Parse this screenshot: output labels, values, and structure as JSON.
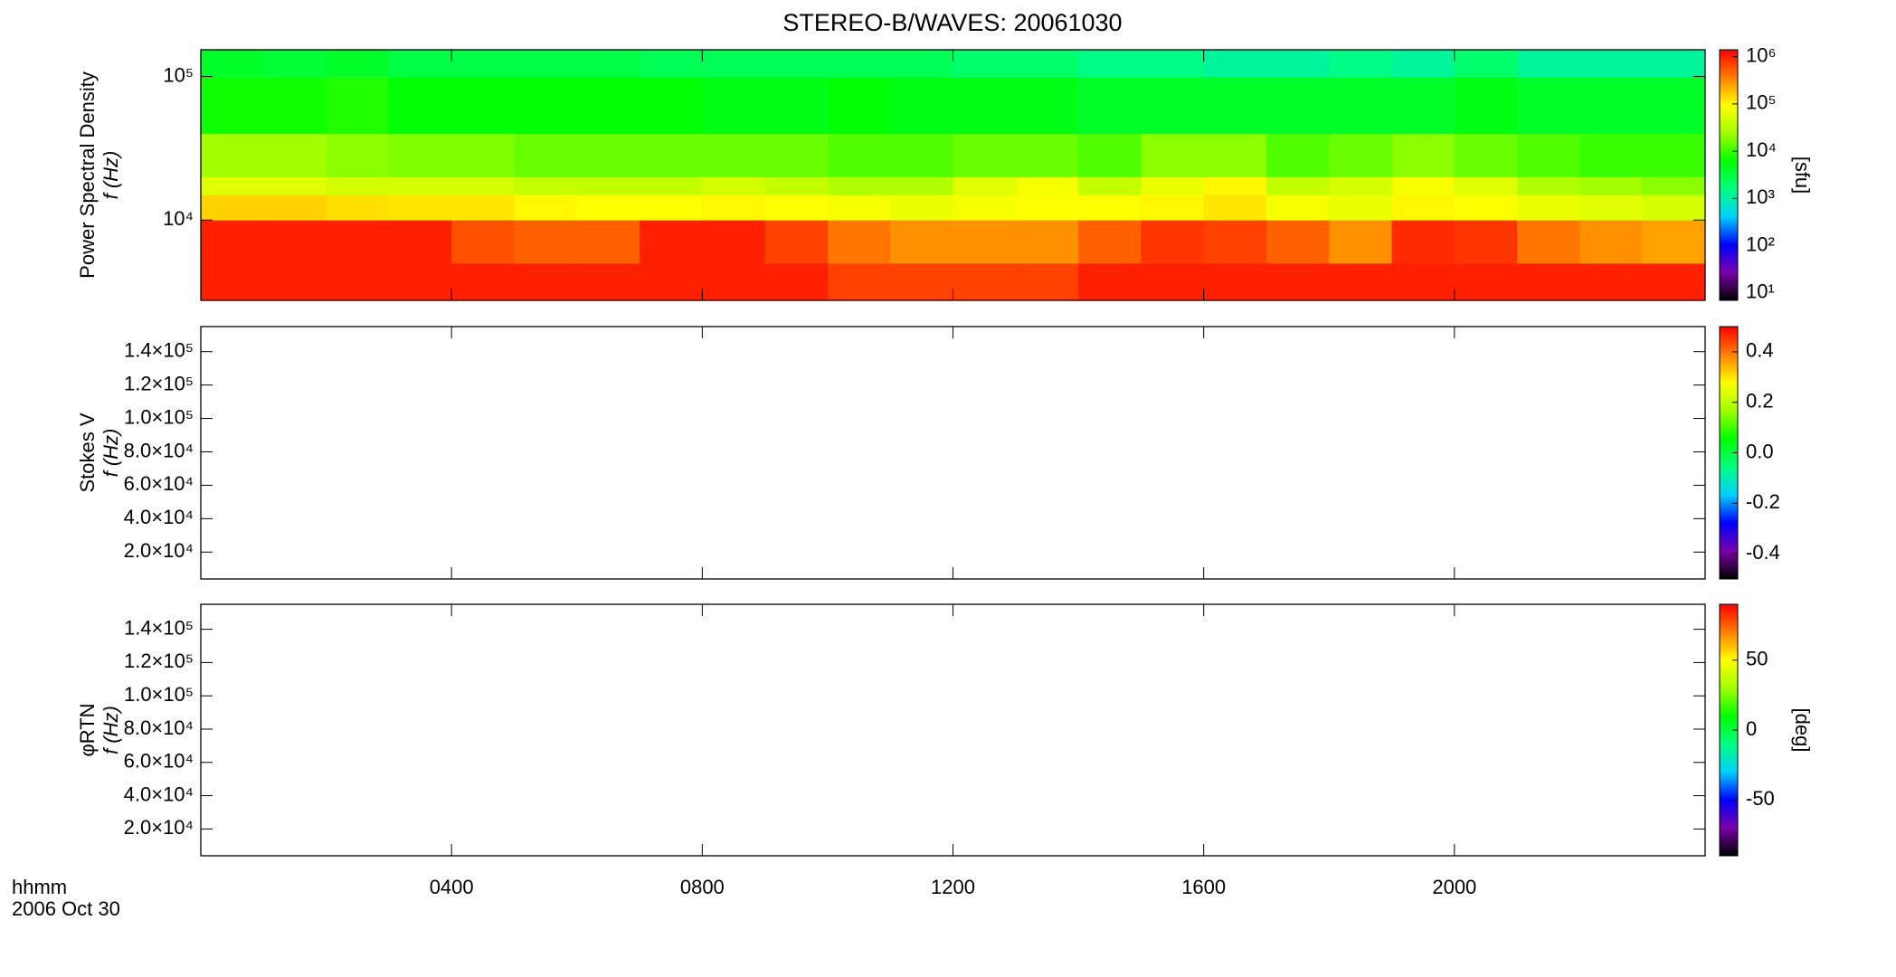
{
  "colormap": [
    "#000000",
    "#7a00a8",
    "#0000ff",
    "#00d0ff",
    "#00ff80",
    "#00ff00",
    "#a0ff00",
    "#ffff00",
    "#ff8000",
    "#ff0000"
  ],
  "chart_data": [
    {
      "type": "heatmap",
      "title": "STEREO-B/WAVES: 20061030",
      "ylabel": [
        "Power Spectral Density",
        "f (Hz)"
      ],
      "xlim": [
        0,
        24
      ],
      "ylim": [
        2760,
        153600
      ],
      "ylog": true,
      "yticks": [
        {
          "value": 10000,
          "label": "10⁴"
        },
        {
          "value": 100000,
          "label": "10⁵"
        }
      ],
      "clim": [
        7,
        1400000
      ],
      "clog": true,
      "ctitle": "[sfu]",
      "cticks": [
        {
          "value": 10,
          "label": "10¹"
        },
        {
          "value": 100,
          "label": "10²"
        },
        {
          "value": 1000,
          "label": "10³"
        },
        {
          "value": 10000,
          "label": "10⁴"
        },
        {
          "value": 100000,
          "label": "10⁵"
        },
        {
          "value": 1000000,
          "label": "10⁶"
        }
      ],
      "x_edges": [
        0,
        1,
        2,
        3,
        4,
        5,
        6,
        7,
        8,
        9,
        10,
        11,
        12,
        13,
        14,
        15,
        16,
        17,
        18,
        19,
        20,
        21,
        22,
        23,
        24
      ],
      "y_edges": [
        2760,
        5000,
        10000,
        15000,
        20000,
        40000,
        100000,
        153600
      ],
      "z": [
        [
          1000000,
          1000000,
          1000000,
          1000000,
          1000000,
          1000000,
          1000000,
          1000000,
          1000000,
          1000000,
          700000,
          700000,
          700000,
          700000,
          1000000,
          1000000,
          1000000,
          1000000,
          1000000,
          1000000,
          1000000,
          1000000,
          1000000,
          1000000
        ],
        [
          1000000,
          1000000,
          1000000,
          1000000,
          600000,
          500000,
          500000,
          1000000,
          1000000,
          700000,
          400000,
          300000,
          300000,
          300000,
          500000,
          800000,
          700000,
          500000,
          300000,
          900000,
          800000,
          400000,
          300000,
          250000
        ],
        [
          150000,
          150000,
          130000,
          120000,
          120000,
          100000,
          90000,
          90000,
          100000,
          90000,
          80000,
          70000,
          80000,
          90000,
          90000,
          100000,
          120000,
          80000,
          70000,
          100000,
          90000,
          70000,
          60000,
          50000
        ],
        [
          60000,
          60000,
          50000,
          50000,
          50000,
          40000,
          40000,
          40000,
          50000,
          40000,
          30000,
          30000,
          60000,
          80000,
          40000,
          70000,
          100000,
          40000,
          50000,
          80000,
          60000,
          30000,
          25000,
          20000
        ],
        [
          25000,
          25000,
          20000,
          18000,
          18000,
          15000,
          15000,
          15000,
          15000,
          15000,
          12000,
          12000,
          15000,
          15000,
          12000,
          20000,
          20000,
          12000,
          15000,
          20000,
          15000,
          12000,
          10000,
          10000
        ],
        [
          7000,
          7000,
          8000,
          6000,
          6000,
          6000,
          6000,
          6000,
          5000,
          5000,
          6000,
          5000,
          5000,
          5000,
          4000,
          4000,
          4000,
          4000,
          4000,
          4000,
          5000,
          4000,
          4000,
          4000
        ],
        [
          4000,
          3500,
          4000,
          3000,
          3000,
          3000,
          3000,
          2500,
          2500,
          2500,
          2500,
          2500,
          2000,
          2000,
          1500,
          1500,
          1200,
          1200,
          1500,
          1200,
          2000,
          1200,
          1200,
          1200
        ]
      ]
    },
    {
      "type": "heatmap",
      "ylabel": [
        "Stokes V",
        "f (Hz)"
      ],
      "xlim": [
        0,
        24
      ],
      "ylim": [
        3900,
        155000
      ],
      "yticks": [
        {
          "value": 20000,
          "label": "2.0×10⁴"
        },
        {
          "value": 40000,
          "label": "4.0×10⁴"
        },
        {
          "value": 60000,
          "label": "6.0×10⁴"
        },
        {
          "value": 80000,
          "label": "8.0×10⁴"
        },
        {
          "value": 100000,
          "label": "1.0×10⁵"
        },
        {
          "value": 120000,
          "label": "1.2×10⁵"
        },
        {
          "value": 140000,
          "label": "1.4×10⁵"
        }
      ],
      "clim": [
        -0.5,
        0.5
      ],
      "cticks": [
        -0.4,
        -0.2,
        {
          "value": 0,
          "label": "0.0"
        },
        0.2,
        0.4
      ]
    },
    {
      "type": "heatmap",
      "ylabel": [
        "φRTN",
        "f (Hz)"
      ],
      "xlim": [
        0,
        24
      ],
      "ylim": [
        3900,
        155000
      ],
      "yticks": [
        {
          "value": 20000,
          "label": "2.0×10⁴"
        },
        {
          "value": 40000,
          "label": "4.0×10⁴"
        },
        {
          "value": 60000,
          "label": "6.0×10⁴"
        },
        {
          "value": 80000,
          "label": "8.0×10⁴"
        },
        {
          "value": 100000,
          "label": "1.0×10⁵"
        },
        {
          "value": 120000,
          "label": "1.2×10⁵"
        },
        {
          "value": 140000,
          "label": "1.4×10⁵"
        }
      ],
      "clim": [
        -90,
        90
      ],
      "cticks": [
        -50,
        0,
        50
      ],
      "ctitle": "[deg]",
      "xticks": [
        {
          "value": 4,
          "label": "0400"
        },
        {
          "value": 8,
          "label": "0800"
        },
        {
          "value": 12,
          "label": "1200"
        },
        {
          "value": 16,
          "label": "1600"
        },
        {
          "value": 20,
          "label": "2000"
        }
      ],
      "xlabel": [
        "hhmm",
        "2006 Oct 30"
      ]
    }
  ]
}
